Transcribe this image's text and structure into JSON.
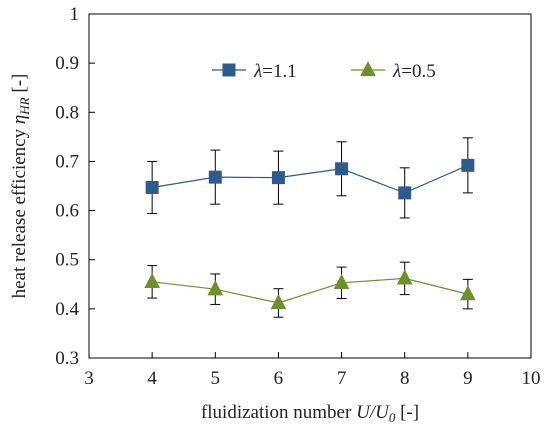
{
  "chart_data": {
    "type": "line",
    "xlabel": {
      "text": "fluidization number ",
      "var": "U/U",
      "sub": "0",
      "unit": " [-]"
    },
    "ylabel": {
      "text": "heat release efficiency ",
      "var": "η",
      "sub": "HR",
      "unit": " [-]"
    },
    "xlim": [
      3,
      10
    ],
    "ylim": [
      0.3,
      1.0
    ],
    "xticks": [
      "3",
      "4",
      "5",
      "6",
      "7",
      "8",
      "9",
      "10"
    ],
    "yticks": [
      "0.3",
      "0.4",
      "0.5",
      "0.6",
      "0.7",
      "0.8",
      "0.9",
      "1"
    ],
    "grid": false,
    "legend_position": "top-center",
    "series": [
      {
        "name": "λ=1.1",
        "name_var": "λ",
        "name_rest": "=1.1",
        "marker": "square",
        "color": "#2e5a8c",
        "x": [
          4,
          5,
          6,
          7,
          8,
          9
        ],
        "y": [
          0.647,
          0.668,
          0.667,
          0.685,
          0.636,
          0.692
        ],
        "err": [
          0.053,
          0.055,
          0.054,
          0.055,
          0.051,
          0.056
        ]
      },
      {
        "name": "λ=0.5",
        "name_var": "λ",
        "name_rest": "=0.5",
        "marker": "triangle",
        "color": "#6e8f2e",
        "x": [
          4,
          5,
          6,
          7,
          8,
          9
        ],
        "y": [
          0.455,
          0.44,
          0.412,
          0.453,
          0.462,
          0.43
        ],
        "err": [
          0.033,
          0.031,
          0.029,
          0.032,
          0.033,
          0.03
        ]
      }
    ]
  }
}
